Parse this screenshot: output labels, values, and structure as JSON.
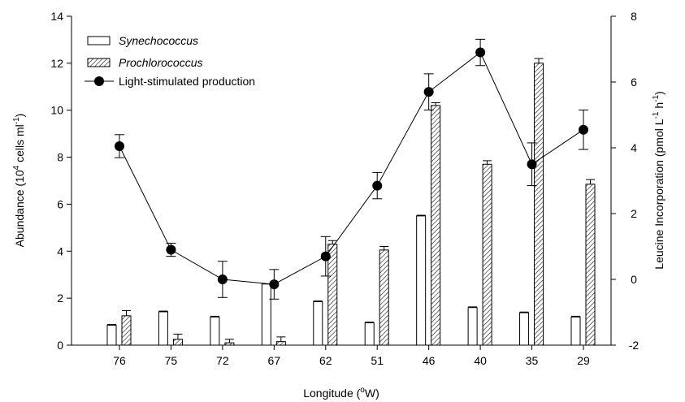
{
  "chart_data": {
    "type": "bar",
    "categories": [
      "76",
      "75",
      "72",
      "67",
      "62",
      "51",
      "46",
      "40",
      "35",
      "29"
    ],
    "xlabel": {
      "prefix": "Longitude (",
      "sup": "o",
      "suffix": "W)"
    },
    "ylabel_left": {
      "p1": "Abundance (10",
      "sup1": "4",
      "p2": " cells ml",
      "sup2": "-1",
      "p3": ")"
    },
    "ylabel_right": {
      "p1": "Leucine Incorporation (pmol L",
      "sup1": "-1",
      "p2": " h",
      "sup2": "-1",
      "p3": ")"
    },
    "ylim_left": [
      0,
      14
    ],
    "yticks_left": [
      "0",
      "2",
      "4",
      "6",
      "8",
      "10",
      "12",
      "14"
    ],
    "ylim_right": [
      -2,
      8
    ],
    "yticks_right": [
      "-2",
      "0",
      "2",
      "4",
      "6",
      "8"
    ],
    "legend_position": "top-left",
    "series": [
      {
        "name": "Synechococcus",
        "axis": "left",
        "kind": "bar",
        "pattern": "open",
        "values": [
          0.85,
          1.42,
          1.2,
          2.6,
          1.85,
          0.95,
          5.5,
          1.6,
          1.38,
          1.2
        ],
        "errors": [
          0.03,
          0.03,
          0.03,
          0.0,
          0.03,
          0.03,
          0.03,
          0.03,
          0.03,
          0.03
        ]
      },
      {
        "name": "Prochlorococcus",
        "axis": "left",
        "kind": "bar",
        "pattern": "hatched",
        "values": [
          1.25,
          0.25,
          0.1,
          0.15,
          4.3,
          4.05,
          10.2,
          7.7,
          12.0,
          6.85
        ],
        "errors": [
          0.22,
          0.22,
          0.15,
          0.2,
          0.15,
          0.15,
          0.12,
          0.15,
          0.2,
          0.2
        ]
      },
      {
        "name": "Light-stimulated production",
        "axis": "right",
        "kind": "line",
        "marker": "filled-circle",
        "values": [
          4.05,
          0.9,
          0.0,
          -0.15,
          0.7,
          2.85,
          5.7,
          6.9,
          3.5,
          4.55
        ],
        "errors": [
          0.35,
          0.2,
          0.55,
          0.45,
          0.6,
          0.4,
          0.55,
          0.4,
          0.65,
          0.6
        ]
      }
    ],
    "colors": {
      "line": "#000000",
      "bar_fill": "#ffffff",
      "bar_stroke": "#000000"
    }
  }
}
